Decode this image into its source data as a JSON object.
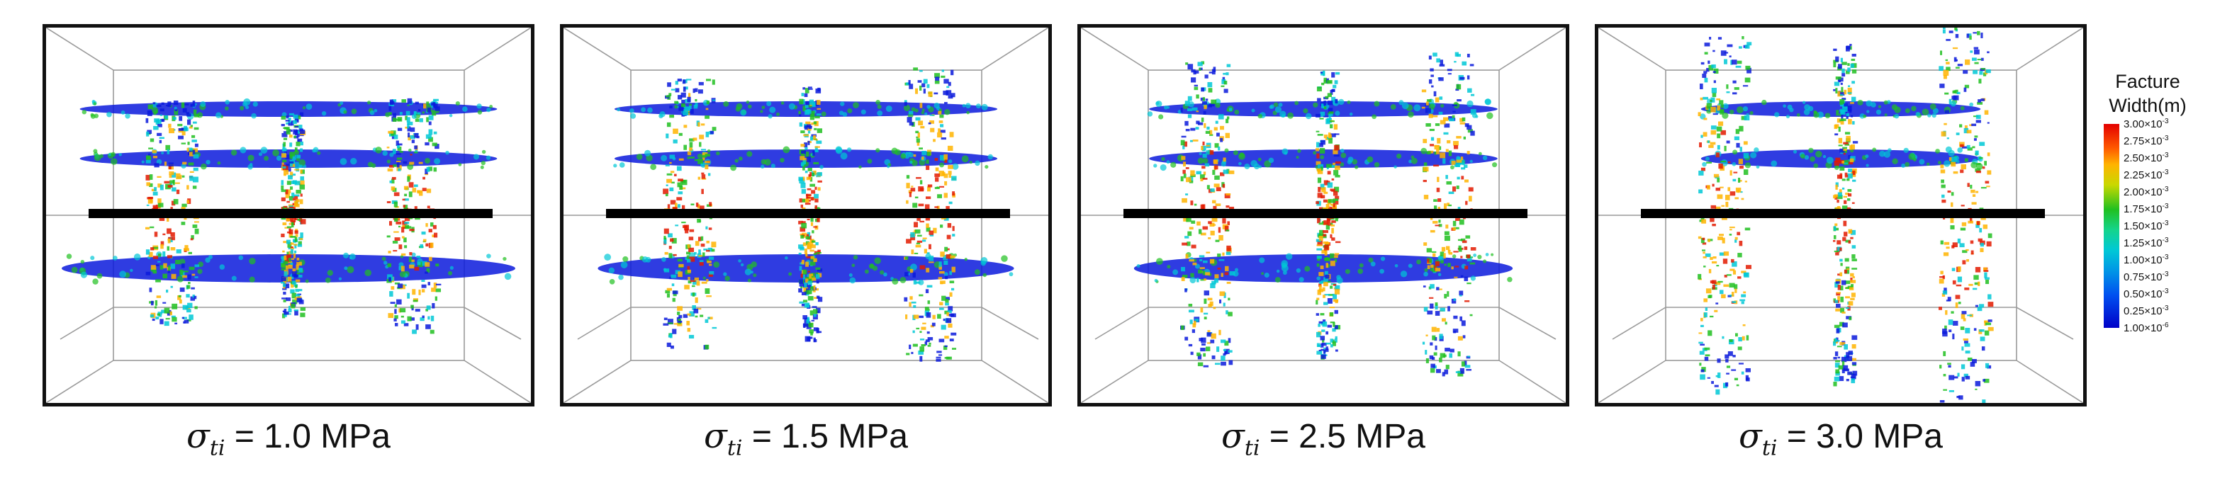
{
  "panels": [
    {
      "caption_main": "σ",
      "caption_sub": "ti",
      "caption_value": "= 1.0 MPa",
      "vertical_reach": 0.35,
      "tilt": 0.0
    },
    {
      "caption_main": "σ",
      "caption_sub": "ti",
      "caption_value": "= 1.5 MPa",
      "vertical_reach": 0.6,
      "tilt": 0.15
    },
    {
      "caption_main": "σ",
      "caption_sub": "ti",
      "caption_value": "= 2.5 MPa",
      "vertical_reach": 0.75,
      "tilt": 0.3
    },
    {
      "caption_main": "σ",
      "caption_sub": "ti",
      "caption_value": "= 3.0 MPa",
      "vertical_reach": 1.0,
      "tilt": 0.6
    }
  ],
  "legend": {
    "title_line1": "Facture",
    "title_line2": "Width(m)",
    "ticks": [
      {
        "m": "3.00×10",
        "e": "-3"
      },
      {
        "m": "2.75×10",
        "e": "-3"
      },
      {
        "m": "2.50×10",
        "e": "-3"
      },
      {
        "m": "2.25×10",
        "e": "-3"
      },
      {
        "m": "2.00×10",
        "e": "-3"
      },
      {
        "m": "1.75×10",
        "e": "-3"
      },
      {
        "m": "1.50×10",
        "e": "-3"
      },
      {
        "m": "1.25×10",
        "e": "-3"
      },
      {
        "m": "1.00×10",
        "e": "-3"
      },
      {
        "m": "0.75×10",
        "e": "-3"
      },
      {
        "m": "0.50×10",
        "e": "-3"
      },
      {
        "m": "0.25×10",
        "e": "-3"
      },
      {
        "m": "1.00×10",
        "e": "-6"
      }
    ]
  },
  "colors": {
    "wellbore": "#000000",
    "box_lines": "#9a9a9a",
    "frame": "#111111",
    "high": "#e31a00",
    "mid": "#20c020",
    "low": "#0a1adc"
  }
}
